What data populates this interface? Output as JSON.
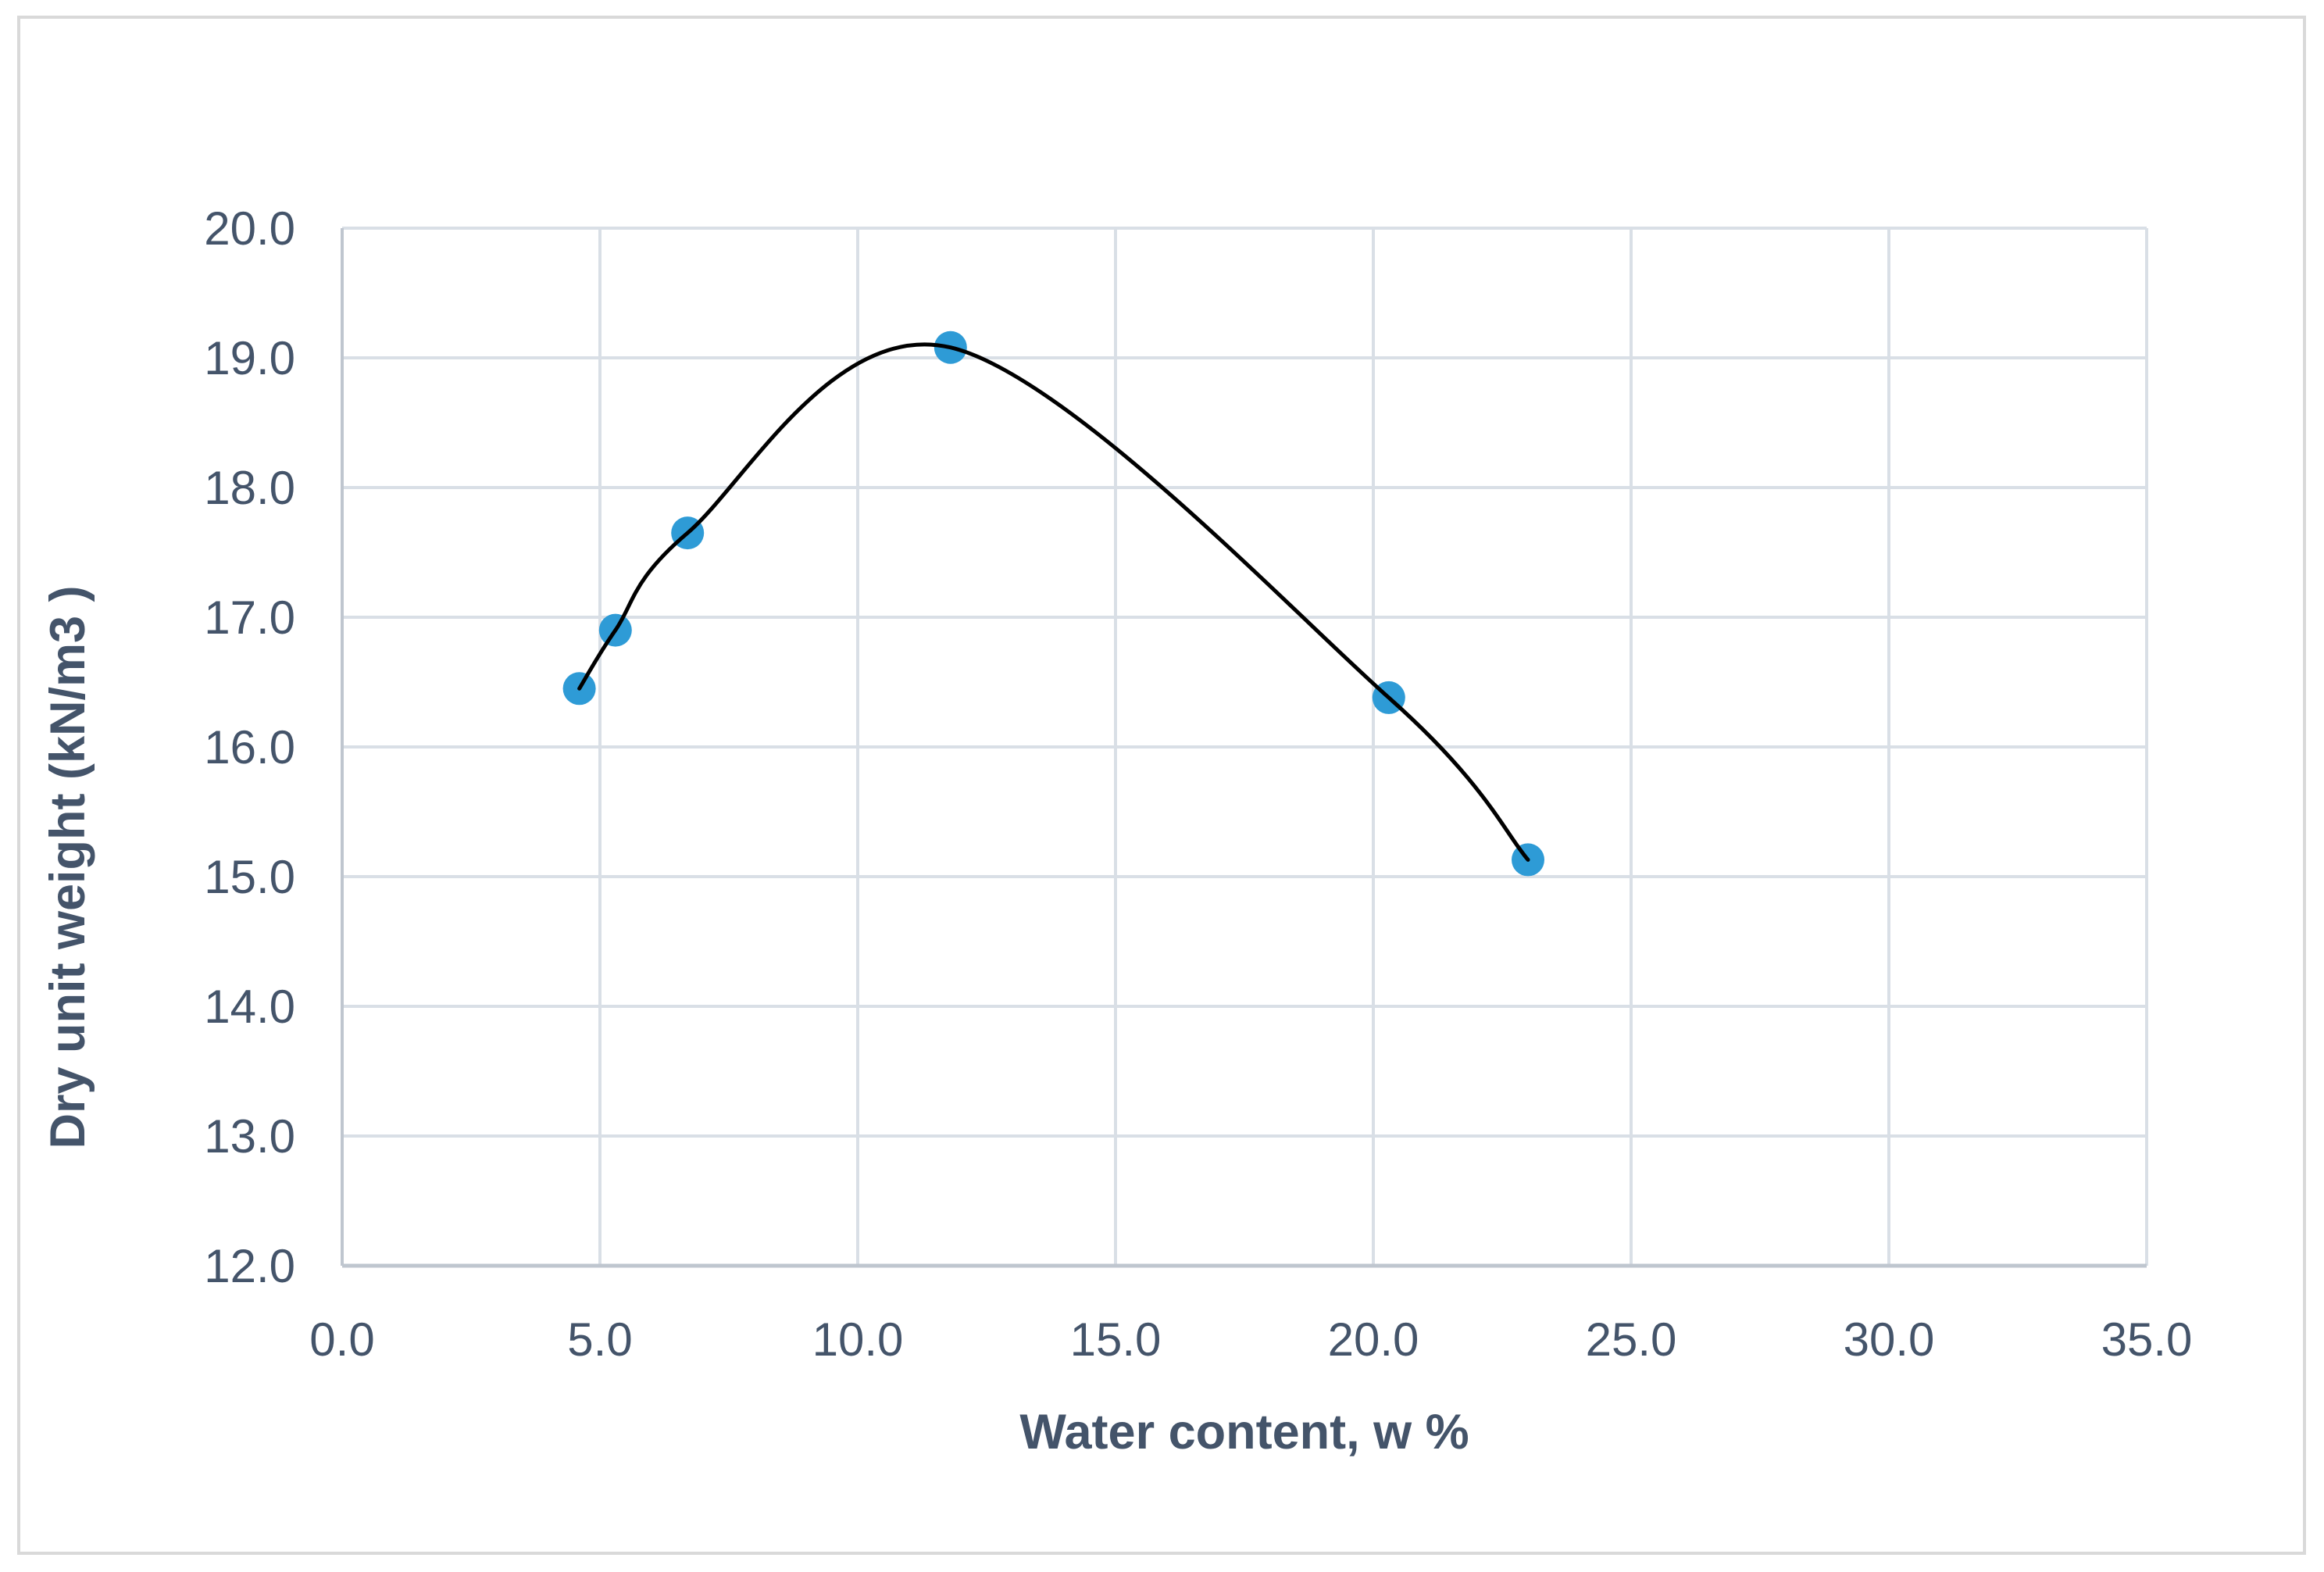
{
  "chart_data": {
    "type": "scatter",
    "title": "",
    "xlabel": "Water content, w %",
    "ylabel": "Dry unit weight (kN/m3 )",
    "xlim": [
      0,
      35
    ],
    "ylim": [
      12,
      20
    ],
    "xticks": [
      "0.0",
      "5.0",
      "10.0",
      "15.0",
      "20.0",
      "25.0",
      "30.0",
      "35.0"
    ],
    "yticks": [
      "12.0",
      "13.0",
      "14.0",
      "15.0",
      "16.0",
      "17.0",
      "18.0",
      "19.0",
      "20.0"
    ],
    "grid": true,
    "legend": "none",
    "series": [
      {
        "x": [
          4.6,
          5.3,
          6.7,
          11.8,
          20.3,
          23.0
        ],
        "y": [
          16.45,
          16.9,
          17.65,
          19.08,
          16.38,
          15.13
        ],
        "marker_color": "#2e9bd6",
        "line_color": "#000000",
        "line": "smooth"
      }
    ]
  }
}
